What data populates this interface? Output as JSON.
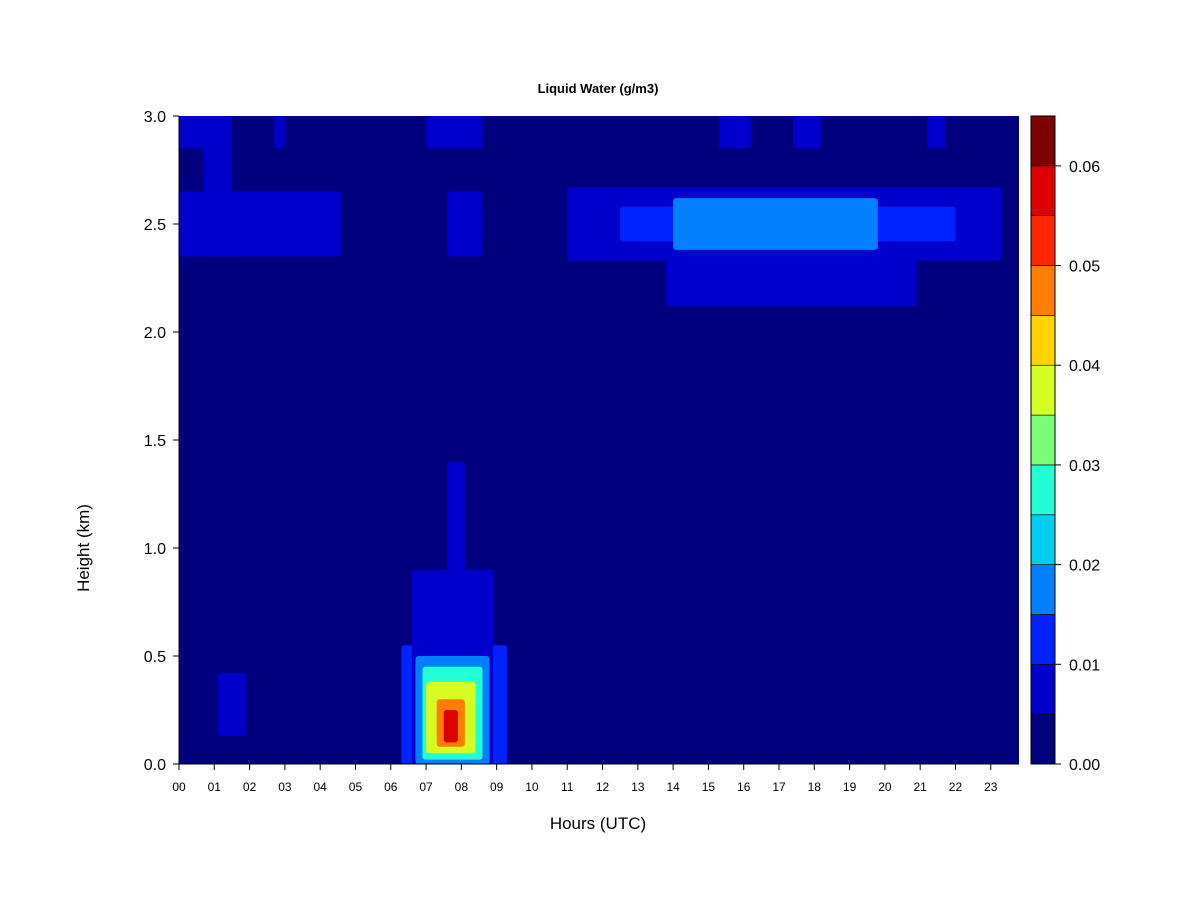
{
  "chart_data": {
    "type": "heatmap",
    "title": "Liquid Water (g/m3)",
    "xlabel": "Hours (UTC)",
    "ylabel": "Height (km)",
    "xlim": [
      0,
      23.8
    ],
    "ylim": [
      0,
      3.0
    ],
    "x_ticks": [
      "00",
      "01",
      "02",
      "03",
      "04",
      "05",
      "06",
      "07",
      "08",
      "09",
      "10",
      "11",
      "12",
      "13",
      "14",
      "15",
      "16",
      "17",
      "18",
      "19",
      "20",
      "21",
      "22",
      "23"
    ],
    "y_ticks": [
      "0.0",
      "0.5",
      "1.0",
      "1.5",
      "2.0",
      "2.5",
      "3.0"
    ],
    "colorbar": {
      "levels": [
        0.0,
        0.005,
        0.01,
        0.015,
        0.02,
        0.025,
        0.03,
        0.035,
        0.04,
        0.045,
        0.05,
        0.055,
        0.06,
        0.065
      ],
      "colors": [
        "#00007f",
        "#0000cd",
        "#0022ff",
        "#0080ff",
        "#00cdf0",
        "#23ffd5",
        "#7aff7a",
        "#d5ff23",
        "#ffd200",
        "#ff7d00",
        "#ff2600",
        "#dd0000",
        "#7f0000"
      ],
      "tick_labels": [
        "0.00",
        "0.01",
        "0.02",
        "0.03",
        "0.04",
        "0.05",
        "0.06"
      ],
      "tick_values": [
        0.0,
        0.01,
        0.02,
        0.03,
        0.04,
        0.05,
        0.06
      ]
    },
    "background_value": 0.002,
    "features": [
      {
        "x": [
          0.0,
          4.6
        ],
        "y": [
          2.35,
          2.65
        ],
        "value": 0.008
      },
      {
        "x": [
          0.0,
          1.5
        ],
        "y": [
          2.85,
          3.0
        ],
        "value": 0.008
      },
      {
        "x": [
          0.7,
          1.5
        ],
        "y": [
          2.35,
          3.0
        ],
        "value": 0.007
      },
      {
        "x": [
          2.7,
          3.0
        ],
        "y": [
          2.85,
          3.0
        ],
        "value": 0.007
      },
      {
        "x": [
          7.0,
          8.6
        ],
        "y": [
          2.85,
          3.0
        ],
        "value": 0.006
      },
      {
        "x": [
          7.6,
          8.6
        ],
        "y": [
          2.35,
          2.65
        ],
        "value": 0.006
      },
      {
        "x": [
          11.0,
          23.3
        ],
        "y": [
          2.33,
          2.67
        ],
        "value": 0.008
      },
      {
        "x": [
          13.8,
          20.9
        ],
        "y": [
          2.12,
          2.35
        ],
        "value": 0.007
      },
      {
        "x": [
          12.5,
          22.0
        ],
        "y": [
          2.42,
          2.58
        ],
        "value": 0.013
      },
      {
        "x": [
          14.0,
          19.8
        ],
        "y": [
          2.38,
          2.62
        ],
        "value": 0.015
      },
      {
        "x": [
          15.5,
          18.5
        ],
        "y": [
          2.45,
          2.55
        ],
        "value": 0.019
      },
      {
        "x": [
          15.3,
          16.2
        ],
        "y": [
          2.85,
          3.0
        ],
        "value": 0.006
      },
      {
        "x": [
          17.4,
          18.2
        ],
        "y": [
          2.85,
          3.0
        ],
        "value": 0.006
      },
      {
        "x": [
          21.2,
          21.7
        ],
        "y": [
          2.85,
          3.0
        ],
        "value": 0.008
      },
      {
        "x": [
          1.1,
          1.9
        ],
        "y": [
          0.13,
          0.42
        ],
        "value": 0.009
      },
      {
        "x": [
          6.3,
          9.3
        ],
        "y": [
          0.0,
          0.55
        ],
        "value": 0.01
      },
      {
        "x": [
          6.6,
          8.9
        ],
        "y": [
          0.0,
          0.9
        ],
        "value": 0.008
      },
      {
        "x": [
          6.7,
          8.8
        ],
        "y": [
          0.0,
          0.5
        ],
        "value": 0.019
      },
      {
        "x": [
          6.9,
          8.6
        ],
        "y": [
          0.02,
          0.45
        ],
        "value": 0.027
      },
      {
        "x": [
          7.0,
          8.4
        ],
        "y": [
          0.05,
          0.38
        ],
        "value": 0.037
      },
      {
        "x": [
          7.3,
          8.1
        ],
        "y": [
          0.08,
          0.3
        ],
        "value": 0.045
      },
      {
        "x": [
          7.5,
          7.9
        ],
        "y": [
          0.1,
          0.25
        ],
        "value": 0.055
      },
      {
        "x": [
          7.6,
          8.1
        ],
        "y": [
          0.7,
          1.4
        ],
        "value": 0.007
      }
    ]
  }
}
